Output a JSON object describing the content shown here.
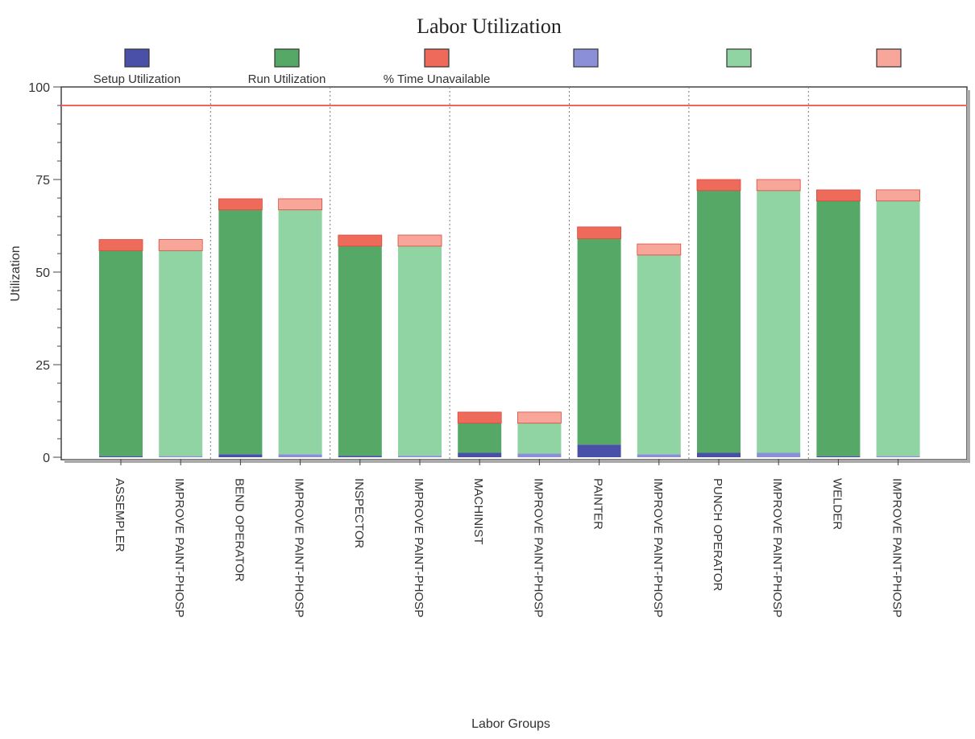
{
  "chart_data": {
    "type": "bar",
    "stacked": true,
    "title": "Labor Utilization",
    "xlabel": "Labor Groups",
    "ylabel": "Utilization",
    "ylim": [
      0,
      100
    ],
    "yticks": [
      0,
      25,
      50,
      75,
      100
    ],
    "grid": false,
    "legend_position": "top",
    "categories": [
      "ASSEMPLER",
      "IMPROVE PAINT-PHOSP",
      "BEND OPERATOR",
      "IMPROVE PAINT-PHOSP",
      "INSPECTOR",
      "IMPROVE PAINT-PHOSP",
      "MACHINIST",
      "IMPROVE PAINT-PHOSP",
      "PAINTER",
      "IMPROVE PAINT-PHOSP",
      "PUNCH OPERATOR",
      "IMPROVE PAINT-PHOSP",
      "WELDER",
      "IMPROVE PAINT-PHOSP"
    ],
    "series": [
      {
        "name": "Setup Utilization",
        "values": [
          0.3,
          0.3,
          0.8,
          0.8,
          0.4,
          0.4,
          1.2,
          1.0,
          3.4,
          0.8,
          1.2,
          1.2,
          0.3,
          0.3
        ]
      },
      {
        "name": "Run Utilization",
        "values": [
          55.5,
          55.5,
          66.0,
          66.0,
          56.6,
          56.6,
          8.0,
          8.2,
          55.6,
          53.8,
          70.8,
          70.8,
          68.9,
          68.9
        ]
      },
      {
        "name": "% Time Unavailable",
        "values": [
          3.0,
          3.0,
          3.0,
          3.0,
          3.0,
          3.0,
          3.0,
          3.0,
          3.2,
          3.0,
          3.0,
          3.0,
          3.0,
          3.0
        ]
      }
    ],
    "series_colors": {
      "dark": [
        "#4a50a8",
        "#55a866",
        "#ee6a5a"
      ],
      "light": [
        "#8a8fd8",
        "#8fd4a2",
        "#f8a69a"
      ]
    },
    "reference_line": {
      "value": 95,
      "color": "#f2665a"
    }
  }
}
